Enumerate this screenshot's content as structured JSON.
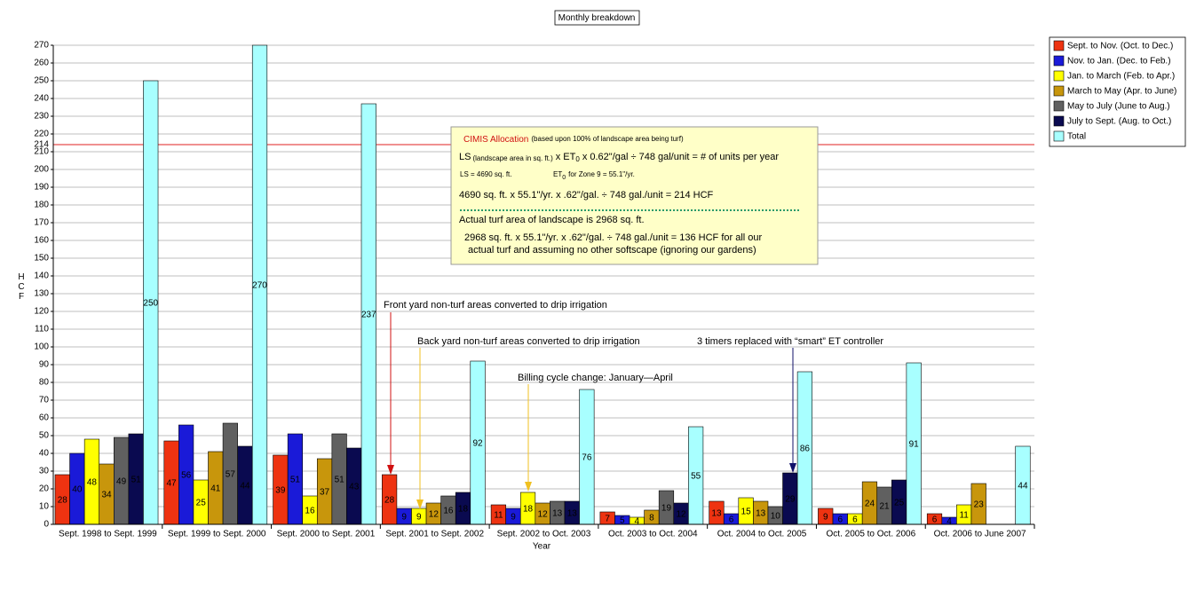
{
  "chart_data": {
    "type": "bar",
    "title": "Monthly breakdown",
    "x_label": "Year",
    "y_label": "HCF",
    "categories": [
      "Sept. 1998 to Sept. 1999",
      "Sept. 1999 to Sept. 2000",
      "Sept. 2000 to Sept. 2001",
      "Sept. 2001 to Sept. 2002",
      "Sept. 2002 to Oct. 2003",
      "Oct. 2003 to Oct. 2004",
      "Oct. 2004 to Oct. 2005",
      "Oct. 2005 to Oct. 2006",
      "Oct. 2006 to June 2007"
    ],
    "series": [
      {
        "name": "Sept. to Nov. (Oct. to Dec.)",
        "color": "#ee3311",
        "label_color": "#ffdddd",
        "values": [
          28,
          47,
          39,
          28,
          11,
          7,
          13,
          9,
          6
        ]
      },
      {
        "name": "Nov. to Jan. (Dec. to Feb.)",
        "color": "#1a1ad8",
        "label_color": "#ffffff",
        "values": [
          40,
          56,
          51,
          9,
          9,
          5,
          6,
          6,
          4
        ]
      },
      {
        "name": "Jan. to March (Feb. to Apr.)",
        "color": "#ffff00",
        "label_color": "#000000",
        "values": [
          48,
          25,
          16,
          9,
          18,
          4,
          15,
          6,
          11
        ]
      },
      {
        "name": "March to May (Apr. to June)",
        "color": "#c8960c",
        "label_color": "#ffffff",
        "values": [
          34,
          41,
          37,
          12,
          12,
          8,
          13,
          24,
          23
        ]
      },
      {
        "name": "May to July (June to Aug.)",
        "color": "#606060",
        "label_color": "#ffffff",
        "values": [
          49,
          57,
          51,
          16,
          13,
          19,
          10,
          21,
          null
        ]
      },
      {
        "name": "July to Sept. (Aug. to Oct.)",
        "color": "#0a0a50",
        "label_color": "#ffffff",
        "values": [
          51,
          44,
          43,
          18,
          13,
          12,
          29,
          25,
          null
        ]
      },
      {
        "name": "Total",
        "color": "#a8ffff",
        "label_color": "#000000",
        "values": [
          250,
          270,
          237,
          92,
          76,
          55,
          86,
          91,
          44
        ]
      }
    ],
    "ylim": [
      0,
      270
    ],
    "yticks": [
      0,
      10,
      20,
      30,
      40,
      50,
      60,
      70,
      80,
      90,
      100,
      110,
      120,
      130,
      140,
      150,
      160,
      170,
      180,
      190,
      200,
      210,
      220,
      230,
      240,
      250,
      260,
      270
    ],
    "grid": true,
    "legend": "right",
    "reference_line": {
      "value": 214,
      "label": "214",
      "color": "#e02020"
    },
    "annotations": [
      "Front yard non-turf areas converted to drip irrigation",
      "Back yard non-turf areas converted to drip irrigation",
      "Billing cycle change: January—April",
      "3 timers replaced with “smart” ET controller"
    ],
    "info_box": {
      "heading": "CIMIS Allocation",
      "heading_note": "(based upon 100% of landscape area being turf)",
      "formula": [
        "LS",
        "(landscape area in sq. ft.)",
        "x ET",
        "0",
        "x 0.62\"/gal ÷ 748 gal/unit = # of units per year"
      ],
      "ls": "LS = 4690 sq. ft.",
      "et": [
        "ET",
        "0",
        "for Zone 9 = 55.1\"/yr."
      ],
      "calc": "4690 sq. ft. x 55.1\"/yr. x .62\"/gal. ÷ 748 gal./unit = 214 HCF",
      "actual": "Actual turf area of landscape is 2968 sq. ft.",
      "actual_calc": [
        "2968 sq. ft. x 55.1\"/yr. x .62\"/gal. ÷ 748 gal./unit = 136 HCF for all our",
        "actual turf and assuming no other softscape (ignoring our gardens)"
      ]
    }
  }
}
